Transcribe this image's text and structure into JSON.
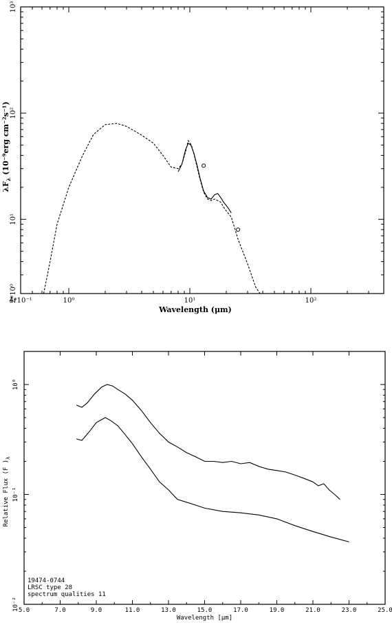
{
  "chart_data": [
    {
      "type": "line",
      "xlabel": "Wavelength (μm)",
      "ylabel": "λF",
      "ylabel_sub": "λ",
      "ylabel_units": "(10⁻⁹erg cm⁻²s⁻¹)",
      "xscale": "log",
      "yscale": "log",
      "xlim": [
        0.4,
        400
      ],
      "ylim": [
        2,
        1000
      ],
      "x_ticks": [
        {
          "v": 0.4,
          "label": "4*10⁻¹"
        },
        {
          "v": 1,
          "label": "10⁰"
        },
        {
          "v": 10,
          "label": "10¹"
        },
        {
          "v": 100,
          "label": "10²"
        }
      ],
      "y_ticks": [
        {
          "v": 2,
          "label": "2*10⁰"
        },
        {
          "v": 10,
          "label": "10¹"
        },
        {
          "v": 100,
          "label": "10²"
        },
        {
          "v": 1000,
          "label": "10³"
        }
      ],
      "series": [
        {
          "style": "dashed",
          "x": [
            0.62,
            0.7,
            0.8,
            1.0,
            1.3,
            1.6,
            2.0,
            2.5,
            3.0,
            4.0,
            5.0,
            6.0,
            7.0,
            8.0,
            8.6,
            9.2,
            9.7,
            10.3,
            11.0,
            12.0,
            13.0,
            14.0,
            15.0,
            16.0,
            17.0,
            18.0,
            19.0,
            20.0,
            22.0,
            25.0,
            30.0,
            35.0,
            38.0
          ],
          "y": [
            2.0,
            4.0,
            9.0,
            20.0,
            40.0,
            63.0,
            78.0,
            80.0,
            75.0,
            62.0,
            52.0,
            40.0,
            31.0,
            30.0,
            33.0,
            43.0,
            55.0,
            50.0,
            38.0,
            25.0,
            18.0,
            15.5,
            15.0,
            15.5,
            15.0,
            14.5,
            13.0,
            12.0,
            10.5,
            6.5,
            3.8,
            2.3,
            2.0
          ]
        },
        {
          "style": "solid",
          "x": [
            8.0,
            8.6,
            9.2,
            9.7,
            10.2,
            10.8,
            11.5,
            12.2,
            13.0,
            14.0,
            15.0,
            16.0,
            17.0,
            18.0,
            19.0,
            20.0,
            21.0,
            22.0
          ],
          "y": [
            28.0,
            33.0,
            45.0,
            52.0,
            50.0,
            42.0,
            32.0,
            24.0,
            18.5,
            16.0,
            15.5,
            17.0,
            17.5,
            16.0,
            14.5,
            13.5,
            12.5,
            11.5
          ]
        }
      ],
      "markers": {
        "shape": "circle",
        "x": [
          13.0,
          25.0
        ],
        "y": [
          32.0,
          8.0
        ]
      }
    },
    {
      "type": "line",
      "xlabel": "Wavelength [μm]",
      "ylabel": "Relative Flux (F )",
      "ylabel_sub": "λ",
      "xscale": "linear",
      "yscale": "log",
      "xlim": [
        5.0,
        25.0
      ],
      "ylim": [
        0.01,
        2.0
      ],
      "x_ticks": [
        {
          "v": 5.0,
          "label": "5.0"
        },
        {
          "v": 7.0,
          "label": "7.0"
        },
        {
          "v": 9.0,
          "label": "9.0"
        },
        {
          "v": 11.0,
          "label": "11.0"
        },
        {
          "v": 13.0,
          "label": "13.0"
        },
        {
          "v": 15.0,
          "label": "15.0"
        },
        {
          "v": 17.0,
          "label": "17.0"
        },
        {
          "v": 19.0,
          "label": "19.0"
        },
        {
          "v": 21.0,
          "label": "21.0"
        },
        {
          "v": 23.0,
          "label": "23.0"
        },
        {
          "v": 25.0,
          "label": "25.0"
        }
      ],
      "y_ticks": [
        {
          "v": 0.01,
          "label": "10⁻²"
        },
        {
          "v": 0.1,
          "label": "10⁻¹"
        },
        {
          "v": 1.0,
          "label": "10⁰"
        }
      ],
      "series": [
        {
          "x": [
            7.9,
            8.2,
            8.5,
            8.9,
            9.3,
            9.6,
            9.9,
            10.2,
            10.6,
            11.0,
            11.5,
            12.0,
            12.5,
            13.0,
            13.5,
            14.0,
            14.5,
            15.0,
            15.5,
            16.0,
            16.5,
            17.0,
            17.5,
            18.0,
            18.5,
            19.0,
            19.5,
            20.0,
            20.5,
            21.0,
            21.3,
            21.6,
            21.9,
            22.2,
            22.5
          ],
          "y": [
            0.65,
            0.62,
            0.68,
            0.82,
            0.95,
            1.0,
            0.97,
            0.9,
            0.82,
            0.72,
            0.58,
            0.45,
            0.36,
            0.3,
            0.27,
            0.24,
            0.22,
            0.2,
            0.2,
            0.195,
            0.2,
            0.19,
            0.195,
            0.18,
            0.17,
            0.165,
            0.16,
            0.15,
            0.14,
            0.13,
            0.12,
            0.125,
            0.11,
            0.1,
            0.09
          ]
        },
        {
          "x": [
            7.9,
            8.2,
            8.6,
            9.0,
            9.5,
            9.8,
            10.2,
            10.6,
            11.0,
            11.5,
            12.0,
            12.5,
            13.0,
            13.5,
            14.0,
            14.5,
            15.0,
            16.0,
            17.0,
            18.0,
            19.0,
            20.0,
            21.0,
            22.0,
            23.0
          ],
          "y": [
            0.32,
            0.31,
            0.37,
            0.45,
            0.5,
            0.47,
            0.42,
            0.35,
            0.29,
            0.22,
            0.17,
            0.13,
            0.11,
            0.09,
            0.085,
            0.08,
            0.075,
            0.07,
            0.068,
            0.065,
            0.06,
            0.052,
            0.046,
            0.041,
            0.037
          ]
        }
      ],
      "annotations": [
        "19474-0744",
        "LRSC type 28",
        "spectrum qualities 11"
      ]
    }
  ]
}
